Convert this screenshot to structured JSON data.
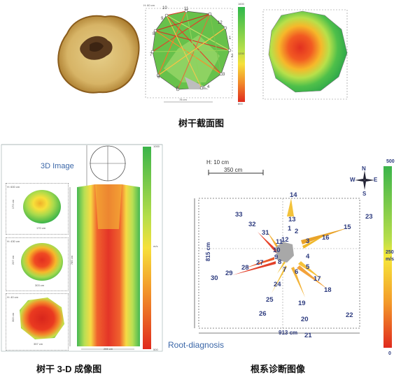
{
  "captions": {
    "cross_section": "树干截面图",
    "trunk_3d": "树干 3-D 成像图",
    "root": "根系诊断图像"
  },
  "top_panel": {
    "height_label": "H: 60 cm",
    "width_label": "78 cm",
    "scale_top": "1600",
    "scale_mid": "1200",
    "scale_bottom": "800",
    "node_labels": [
      "10",
      "11",
      "12",
      "1",
      "2",
      "3",
      "4",
      "5",
      "6",
      "7",
      "8",
      "9"
    ]
  },
  "trunk_panel": {
    "title": "3D Image",
    "slices": [
      {
        "height": "H: 600 cm",
        "width": "170 cm",
        "side": "173 cm"
      },
      {
        "height": "H: 430 cm",
        "width": "303 cm",
        "side": "207 cm"
      },
      {
        "height": "H: 40 cm",
        "width": "357 cm",
        "side": "303 cm"
      }
    ],
    "trunk_width": "255 cm",
    "trunk_height": "785 cm",
    "scale_top": "1000",
    "scale_unit": "m/s",
    "scale_bottom": "500"
  },
  "root_panel": {
    "height_label": "H: 10 cm",
    "scale_bar": "350 cm",
    "width_label": "913 cm",
    "depth_label": "815 cm",
    "footer": "Root-diagnosis",
    "compass": {
      "n": "N",
      "s": "S",
      "e": "E",
      "w": "W"
    },
    "scale_top": "500",
    "scale_mid": "250",
    "scale_unit": "m/s",
    "scale_bottom": "0",
    "points": [
      "1",
      "2",
      "3",
      "4",
      "5",
      "6",
      "7",
      "8",
      "9",
      "10",
      "11",
      "12",
      "13",
      "14",
      "15",
      "16",
      "17",
      "18",
      "19",
      "20",
      "21",
      "22",
      "23",
      "24",
      "25",
      "26",
      "27",
      "28",
      "29",
      "30",
      "31",
      "32",
      "33"
    ]
  }
}
